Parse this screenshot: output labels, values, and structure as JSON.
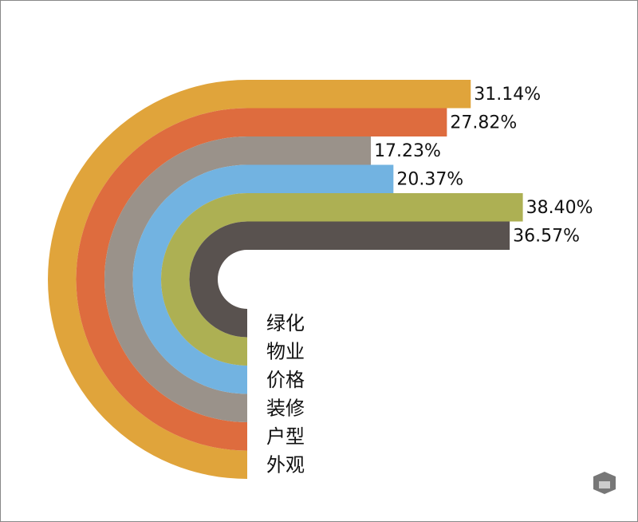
{
  "chart_data": {
    "type": "radialbar",
    "categories": [
      "外观",
      "户型",
      "装修",
      "价格",
      "物业",
      "绿化"
    ],
    "values": [
      31.14,
      27.82,
      17.23,
      20.37,
      38.4,
      36.57
    ],
    "value_labels": [
      "31.14%",
      "27.82%",
      "17.23%",
      "20.37%",
      "38.40%",
      "36.57%"
    ],
    "colors": [
      "#e0a43b",
      "#de6c3e",
      "#9a928a",
      "#72b3e1",
      "#adb053",
      "#59524f"
    ]
  }
}
